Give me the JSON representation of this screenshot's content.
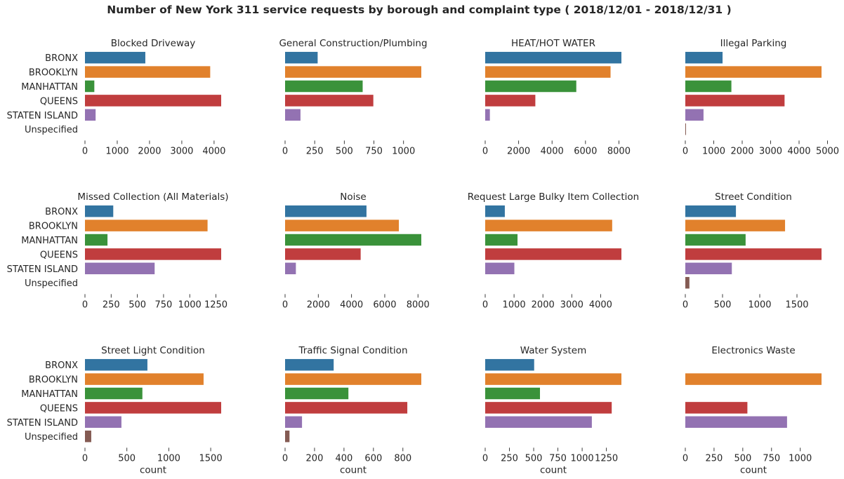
{
  "figure": {
    "title": "Number of New York 311 service requests by borough and complaint type  ( 2018/12/01 - 2018/12/31 )"
  },
  "colors": {
    "BRONX": "#3274a1",
    "BROOKLYN": "#e1812c",
    "MANHATTAN": "#3a923a",
    "QUEENS": "#c03d3e",
    "STATEN ISLAND": "#9372b2",
    "Unspecified": "#845b53"
  },
  "chart_data": [
    {
      "type": "bar",
      "orientation": "horizontal",
      "title": "Blocked Driveway",
      "xlabel": "",
      "categories": [
        "BRONX",
        "BROOKLYN",
        "MANHATTAN",
        "QUEENS",
        "STATEN ISLAND",
        "Unspecified"
      ],
      "values": [
        1870,
        3880,
        290,
        4220,
        330,
        0
      ],
      "xlim": [
        0,
        4220
      ],
      "xticks": [
        0,
        1000,
        2000,
        3000,
        4000
      ]
    },
    {
      "type": "bar",
      "orientation": "horizontal",
      "title": "General Construction/Plumbing",
      "xlabel": "",
      "categories": [
        "BRONX",
        "BROOKLYN",
        "MANHATTAN",
        "QUEENS",
        "STATEN ISLAND",
        "Unspecified"
      ],
      "values": [
        275,
        1150,
        655,
        745,
        130,
        0
      ],
      "xlim": [
        0,
        1150
      ],
      "xticks": [
        0,
        250,
        500,
        750,
        1000
      ]
    },
    {
      "type": "bar",
      "orientation": "horizontal",
      "title": "HEAT/HOT WATER",
      "xlabel": "",
      "categories": [
        "BRONX",
        "BROOKLYN",
        "MANHATTAN",
        "QUEENS",
        "STATEN ISLAND",
        "Unspecified"
      ],
      "values": [
        8150,
        7500,
        5450,
        3000,
        280,
        0
      ],
      "xlim": [
        0,
        8150
      ],
      "xticks": [
        0,
        2000,
        4000,
        6000,
        8000
      ]
    },
    {
      "type": "bar",
      "orientation": "horizontal",
      "title": "Illegal Parking",
      "xlabel": "",
      "categories": [
        "BRONX",
        "BROOKLYN",
        "MANHATTAN",
        "QUEENS",
        "STATEN ISLAND",
        "Unspecified"
      ],
      "values": [
        1310,
        4790,
        1620,
        3490,
        640,
        10
      ],
      "xlim": [
        0,
        4790
      ],
      "xticks": [
        0,
        1000,
        2000,
        3000,
        4000,
        5000
      ]
    },
    {
      "type": "bar",
      "orientation": "horizontal",
      "title": "Missed Collection (All Materials)",
      "xlabel": "",
      "categories": [
        "BRONX",
        "BROOKLYN",
        "MANHATTAN",
        "QUEENS",
        "STATEN ISLAND",
        "Unspecified"
      ],
      "values": [
        270,
        1170,
        215,
        1300,
        665,
        0
      ],
      "xlim": [
        0,
        1300
      ],
      "xticks": [
        0,
        250,
        500,
        750,
        1000,
        1250
      ]
    },
    {
      "type": "bar",
      "orientation": "horizontal",
      "title": "Noise",
      "xlabel": "",
      "categories": [
        "BRONX",
        "BROOKLYN",
        "MANHATTAN",
        "QUEENS",
        "STATEN ISLAND",
        "Unspecified"
      ],
      "values": [
        4900,
        6850,
        8200,
        4550,
        650,
        0
      ],
      "xlim": [
        0,
        8200
      ],
      "xticks": [
        0,
        2000,
        4000,
        6000,
        8000
      ]
    },
    {
      "type": "bar",
      "orientation": "horizontal",
      "title": "Request Large Bulky Item Collection",
      "xlabel": "",
      "categories": [
        "BRONX",
        "BROOKLYN",
        "MANHATTAN",
        "QUEENS",
        "STATEN ISLAND",
        "Unspecified"
      ],
      "values": [
        680,
        4400,
        1120,
        4720,
        1010,
        0
      ],
      "xlim": [
        0,
        4720
      ],
      "xticks": [
        0,
        1000,
        2000,
        3000,
        4000
      ]
    },
    {
      "type": "bar",
      "orientation": "horizontal",
      "title": "Street Condition",
      "xlabel": "",
      "categories": [
        "BRONX",
        "BROOKLYN",
        "MANHATTAN",
        "QUEENS",
        "STATEN ISLAND",
        "Unspecified"
      ],
      "values": [
        680,
        1340,
        810,
        1830,
        625,
        55
      ],
      "xlim": [
        0,
        1830
      ],
      "xticks": [
        0,
        500,
        1000,
        1500
      ]
    },
    {
      "type": "bar",
      "orientation": "horizontal",
      "title": "Street Light Condition",
      "xlabel": "count",
      "categories": [
        "BRONX",
        "BROOKLYN",
        "MANHATTAN",
        "QUEENS",
        "STATEN ISLAND",
        "Unspecified"
      ],
      "values": [
        745,
        1415,
        685,
        1625,
        435,
        75
      ],
      "xlim": [
        0,
        1625
      ],
      "xticks": [
        0,
        500,
        1000,
        1500
      ]
    },
    {
      "type": "bar",
      "orientation": "horizontal",
      "title": "Traffic Signal Condition",
      "xlabel": "count",
      "categories": [
        "BRONX",
        "BROOKLYN",
        "MANHATTAN",
        "QUEENS",
        "STATEN ISLAND",
        "Unspecified"
      ],
      "values": [
        330,
        925,
        430,
        830,
        115,
        30
      ],
      "xlim": [
        0,
        925
      ],
      "xticks": [
        0,
        200,
        400,
        600,
        800
      ]
    },
    {
      "type": "bar",
      "orientation": "horizontal",
      "title": "Water System",
      "xlabel": "count",
      "categories": [
        "BRONX",
        "BROOKLYN",
        "MANHATTAN",
        "QUEENS",
        "STATEN ISLAND",
        "Unspecified"
      ],
      "values": [
        505,
        1405,
        565,
        1305,
        1100,
        0
      ],
      "xlim": [
        0,
        1405
      ],
      "xticks": [
        0,
        250,
        500,
        750,
        1000,
        1250
      ]
    },
    {
      "type": "bar",
      "orientation": "horizontal",
      "title": "Electronics Waste",
      "xlabel": "count",
      "categories": [
        "BRONX",
        "BROOKLYN",
        "MANHATTAN",
        "QUEENS",
        "STATEN ISLAND",
        "Unspecified"
      ],
      "values": [
        0,
        1185,
        0,
        540,
        885,
        0
      ],
      "xlim": [
        0,
        1185
      ],
      "xticks": [
        0,
        250,
        500,
        750,
        1000
      ]
    }
  ]
}
